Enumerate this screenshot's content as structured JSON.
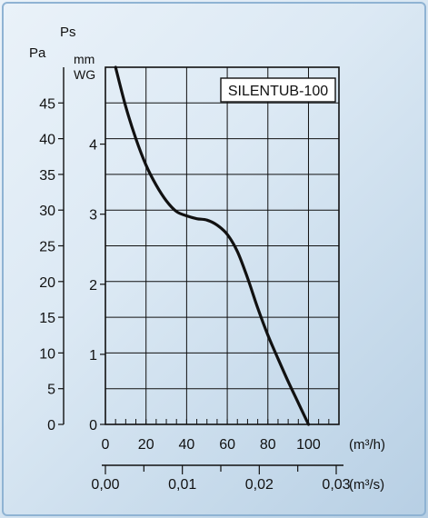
{
  "chart_data": {
    "type": "line",
    "title": "SILENTUB-100",
    "left_axis_label": "Pa",
    "left_axis_ticks": [
      0,
      5,
      10,
      15,
      20,
      25,
      30,
      35,
      40,
      45
    ],
    "right_axis_label_top": "Ps",
    "right_axis_label_unit_1": "mm",
    "right_axis_label_unit_2": "WG",
    "right_axis_ticks": [
      0,
      1,
      2,
      3,
      4
    ],
    "xlabel": "(m³/h)",
    "x_ticks": [
      0,
      20,
      40,
      60,
      80,
      100
    ],
    "x2label": "(m³/s)",
    "x2_ticks": [
      "0,00",
      "0,01",
      "0,02",
      "0,03"
    ],
    "xlim": [
      0,
      115
    ],
    "ylim": [
      0,
      50
    ],
    "grid": true,
    "series": [
      {
        "x": [
          5,
          10,
          15,
          20,
          25,
          30,
          35,
          40,
          45,
          50,
          55,
          60,
          65,
          70,
          75,
          80,
          85,
          90,
          95,
          100
        ],
        "y": [
          50,
          44.5,
          40,
          36.3,
          33.5,
          31.3,
          29.8,
          29.2,
          28.8,
          28.6,
          27.9,
          26.6,
          24.2,
          20.5,
          16.3,
          12.5,
          9.2,
          6,
          3,
          0
        ]
      }
    ],
    "colors": {
      "line": "#111111",
      "grid": "#111111",
      "frame_bg": "#dce9f4"
    }
  }
}
